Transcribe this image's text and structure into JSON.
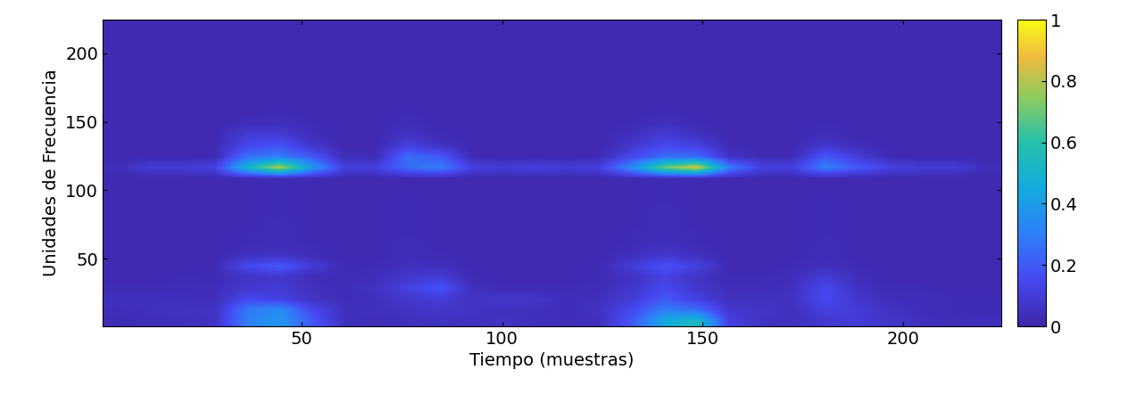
{
  "chart_data": {
    "type": "heatmap",
    "xlabel": "Tiempo (muestras)",
    "ylabel": "Unidades de Frecuencia",
    "xlim": [
      0.5,
      224.5
    ],
    "ylim": [
      0.5,
      224.5
    ],
    "xticks": [
      50,
      100,
      150,
      200
    ],
    "yticks": [
      50,
      100,
      150,
      200
    ],
    "cells": [
      [
        0.03,
        0.04,
        0.05,
        0.06,
        0.3,
        0.38,
        0.2,
        0.05,
        0.04,
        0.05,
        0.06,
        0.05,
        0.06,
        0.05,
        0.04,
        0.05,
        0.2,
        0.45,
        0.55,
        0.12,
        0.06,
        0.05,
        0.08,
        0.1,
        0.07,
        0.05,
        0.04,
        0.05
      ],
      [
        0.04,
        0.05,
        0.06,
        0.06,
        0.28,
        0.35,
        0.15,
        0.05,
        0.05,
        0.06,
        0.08,
        0.06,
        0.05,
        0.05,
        0.04,
        0.06,
        0.15,
        0.3,
        0.25,
        0.08,
        0.07,
        0.05,
        0.12,
        0.1,
        0.06,
        0.04,
        0.03,
        0.03
      ],
      [
        0.05,
        0.05,
        0.05,
        0.04,
        0.15,
        0.12,
        0.06,
        0.04,
        0.05,
        0.08,
        0.1,
        0.06,
        0.08,
        0.07,
        0.04,
        0.05,
        0.1,
        0.2,
        0.12,
        0.05,
        0.05,
        0.06,
        0.15,
        0.08,
        0.04,
        0.04,
        0.03,
        0.03
      ],
      [
        0.03,
        0.03,
        0.04,
        0.04,
        0.08,
        0.1,
        0.05,
        0.04,
        0.06,
        0.12,
        0.18,
        0.05,
        0.03,
        0.03,
        0.03,
        0.04,
        0.08,
        0.15,
        0.08,
        0.04,
        0.04,
        0.05,
        0.15,
        0.06,
        0.03,
        0.03,
        0.02,
        0.02
      ],
      [
        0.02,
        0.02,
        0.03,
        0.03,
        0.06,
        0.08,
        0.04,
        0.03,
        0.04,
        0.08,
        0.1,
        0.03,
        0.02,
        0.02,
        0.02,
        0.03,
        0.06,
        0.12,
        0.06,
        0.03,
        0.03,
        0.04,
        0.1,
        0.04,
        0.02,
        0.02,
        0.02,
        0.02
      ],
      [
        0.02,
        0.02,
        0.02,
        0.03,
        0.15,
        0.2,
        0.1,
        0.03,
        0.03,
        0.05,
        0.05,
        0.02,
        0.02,
        0.02,
        0.02,
        0.03,
        0.1,
        0.18,
        0.12,
        0.02,
        0.02,
        0.03,
        0.05,
        0.03,
        0.02,
        0.02,
        0.02,
        0.02
      ],
      [
        0.02,
        0.02,
        0.02,
        0.02,
        0.05,
        0.06,
        0.04,
        0.02,
        0.02,
        0.04,
        0.03,
        0.02,
        0.02,
        0.02,
        0.02,
        0.02,
        0.05,
        0.08,
        0.05,
        0.02,
        0.02,
        0.02,
        0.04,
        0.02,
        0.02,
        0.02,
        0.02,
        0.02
      ],
      [
        0.02,
        0.02,
        0.02,
        0.02,
        0.03,
        0.04,
        0.03,
        0.02,
        0.02,
        0.04,
        0.02,
        0.02,
        0.02,
        0.02,
        0.02,
        0.02,
        0.03,
        0.05,
        0.03,
        0.02,
        0.02,
        0.02,
        0.04,
        0.02,
        0.02,
        0.02,
        0.02,
        0.02
      ],
      [
        0.02,
        0.02,
        0.02,
        0.02,
        0.03,
        0.04,
        0.02,
        0.02,
        0.02,
        0.03,
        0.02,
        0.02,
        0.02,
        0.02,
        0.02,
        0.02,
        0.03,
        0.04,
        0.03,
        0.02,
        0.02,
        0.02,
        0.03,
        0.02,
        0.02,
        0.02,
        0.02,
        0.02
      ],
      [
        0.02,
        0.02,
        0.02,
        0.02,
        0.02,
        0.04,
        0.02,
        0.02,
        0.02,
        0.03,
        0.02,
        0.02,
        0.02,
        0.02,
        0.02,
        0.02,
        0.02,
        0.04,
        0.02,
        0.02,
        0.02,
        0.02,
        0.03,
        0.02,
        0.02,
        0.02,
        0.02,
        0.02
      ],
      [
        0.02,
        0.02,
        0.02,
        0.02,
        0.02,
        0.03,
        0.02,
        0.02,
        0.02,
        0.03,
        0.02,
        0.02,
        0.02,
        0.02,
        0.02,
        0.02,
        0.02,
        0.04,
        0.02,
        0.02,
        0.02,
        0.02,
        0.03,
        0.02,
        0.02,
        0.02,
        0.02,
        0.02
      ],
      [
        0.02,
        0.02,
        0.02,
        0.02,
        0.02,
        0.03,
        0.02,
        0.02,
        0.02,
        0.03,
        0.02,
        0.02,
        0.02,
        0.02,
        0.02,
        0.02,
        0.02,
        0.03,
        0.02,
        0.02,
        0.02,
        0.02,
        0.03,
        0.02,
        0.02,
        0.02,
        0.02,
        0.02
      ],
      [
        0.02,
        0.02,
        0.02,
        0.02,
        0.02,
        0.03,
        0.02,
        0.02,
        0.02,
        0.02,
        0.02,
        0.02,
        0.02,
        0.02,
        0.02,
        0.02,
        0.02,
        0.03,
        0.02,
        0.02,
        0.02,
        0.02,
        0.02,
        0.02,
        0.02,
        0.02,
        0.02,
        0.02
      ],
      [
        0.02,
        0.02,
        0.02,
        0.02,
        0.03,
        0.03,
        0.03,
        0.02,
        0.02,
        0.02,
        0.02,
        0.02,
        0.02,
        0.02,
        0.02,
        0.02,
        0.03,
        0.03,
        0.03,
        0.02,
        0.02,
        0.02,
        0.02,
        0.02,
        0.02,
        0.02,
        0.02,
        0.02
      ],
      [
        0.04,
        0.1,
        0.1,
        0.12,
        0.5,
        0.8,
        0.4,
        0.12,
        0.12,
        0.25,
        0.3,
        0.12,
        0.1,
        0.12,
        0.1,
        0.12,
        0.35,
        0.7,
        0.85,
        0.3,
        0.12,
        0.12,
        0.3,
        0.2,
        0.12,
        0.1,
        0.1,
        0.04
      ],
      [
        0.02,
        0.02,
        0.02,
        0.03,
        0.25,
        0.3,
        0.2,
        0.04,
        0.03,
        0.25,
        0.2,
        0.03,
        0.02,
        0.02,
        0.02,
        0.03,
        0.15,
        0.25,
        0.25,
        0.06,
        0.03,
        0.03,
        0.2,
        0.1,
        0.03,
        0.02,
        0.02,
        0.02
      ],
      [
        0.02,
        0.02,
        0.02,
        0.02,
        0.15,
        0.18,
        0.08,
        0.02,
        0.02,
        0.12,
        0.06,
        0.02,
        0.02,
        0.02,
        0.02,
        0.02,
        0.08,
        0.15,
        0.12,
        0.03,
        0.02,
        0.02,
        0.08,
        0.04,
        0.02,
        0.02,
        0.02,
        0.02
      ],
      [
        0.02,
        0.02,
        0.02,
        0.02,
        0.1,
        0.1,
        0.04,
        0.02,
        0.02,
        0.06,
        0.03,
        0.02,
        0.02,
        0.02,
        0.02,
        0.02,
        0.05,
        0.1,
        0.06,
        0.02,
        0.02,
        0.02,
        0.04,
        0.02,
        0.02,
        0.02,
        0.02,
        0.02
      ],
      [
        0.02,
        0.02,
        0.02,
        0.02,
        0.04,
        0.05,
        0.03,
        0.02,
        0.02,
        0.04,
        0.02,
        0.02,
        0.02,
        0.02,
        0.02,
        0.02,
        0.03,
        0.05,
        0.03,
        0.02,
        0.02,
        0.02,
        0.03,
        0.02,
        0.02,
        0.02,
        0.02,
        0.02
      ],
      [
        0.02,
        0.02,
        0.02,
        0.02,
        0.02,
        0.03,
        0.02,
        0.02,
        0.02,
        0.03,
        0.02,
        0.02,
        0.02,
        0.02,
        0.02,
        0.02,
        0.02,
        0.03,
        0.02,
        0.02,
        0.02,
        0.02,
        0.02,
        0.02,
        0.02,
        0.02,
        0.02,
        0.02
      ],
      [
        0.02,
        0.02,
        0.02,
        0.02,
        0.02,
        0.02,
        0.02,
        0.02,
        0.02,
        0.02,
        0.02,
        0.02,
        0.02,
        0.02,
        0.02,
        0.02,
        0.02,
        0.02,
        0.02,
        0.02,
        0.02,
        0.02,
        0.02,
        0.02,
        0.02,
        0.02,
        0.02,
        0.02
      ],
      [
        0.02,
        0.02,
        0.02,
        0.02,
        0.02,
        0.02,
        0.02,
        0.02,
        0.02,
        0.02,
        0.02,
        0.02,
        0.02,
        0.02,
        0.02,
        0.02,
        0.02,
        0.02,
        0.02,
        0.02,
        0.02,
        0.02,
        0.02,
        0.02,
        0.02,
        0.02,
        0.02,
        0.02
      ],
      [
        0.02,
        0.02,
        0.02,
        0.02,
        0.02,
        0.02,
        0.02,
        0.02,
        0.02,
        0.02,
        0.02,
        0.02,
        0.02,
        0.02,
        0.02,
        0.02,
        0.02,
        0.02,
        0.02,
        0.02,
        0.02,
        0.02,
        0.02,
        0.02,
        0.02,
        0.02,
        0.02,
        0.02
      ],
      [
        0.02,
        0.02,
        0.02,
        0.02,
        0.02,
        0.02,
        0.02,
        0.02,
        0.02,
        0.02,
        0.02,
        0.02,
        0.02,
        0.02,
        0.02,
        0.02,
        0.02,
        0.02,
        0.02,
        0.02,
        0.02,
        0.02,
        0.02,
        0.02,
        0.02,
        0.02,
        0.02,
        0.02
      ],
      [
        0.02,
        0.02,
        0.02,
        0.02,
        0.02,
        0.02,
        0.02,
        0.02,
        0.02,
        0.02,
        0.02,
        0.02,
        0.02,
        0.02,
        0.02,
        0.02,
        0.02,
        0.02,
        0.02,
        0.02,
        0.02,
        0.02,
        0.02,
        0.02,
        0.02,
        0.02,
        0.02,
        0.02
      ],
      [
        0.02,
        0.02,
        0.02,
        0.02,
        0.02,
        0.02,
        0.02,
        0.02,
        0.02,
        0.02,
        0.02,
        0.02,
        0.02,
        0.02,
        0.02,
        0.02,
        0.02,
        0.02,
        0.02,
        0.02,
        0.02,
        0.02,
        0.02,
        0.02,
        0.02,
        0.02,
        0.02,
        0.02
      ],
      [
        0.02,
        0.02,
        0.02,
        0.02,
        0.02,
        0.02,
        0.02,
        0.02,
        0.02,
        0.02,
        0.02,
        0.02,
        0.02,
        0.02,
        0.02,
        0.02,
        0.02,
        0.02,
        0.02,
        0.02,
        0.02,
        0.02,
        0.02,
        0.02,
        0.02,
        0.02,
        0.02,
        0.02
      ],
      [
        0.02,
        0.02,
        0.02,
        0.02,
        0.02,
        0.02,
        0.02,
        0.02,
        0.02,
        0.02,
        0.02,
        0.02,
        0.02,
        0.02,
        0.02,
        0.02,
        0.02,
        0.02,
        0.02,
        0.02,
        0.02,
        0.02,
        0.02,
        0.02,
        0.02,
        0.02,
        0.02,
        0.02
      ]
    ],
    "colorbar": {
      "range": [
        0,
        1
      ],
      "ticks": [
        0,
        0.2,
        0.4,
        0.6,
        0.8,
        1
      ]
    }
  }
}
